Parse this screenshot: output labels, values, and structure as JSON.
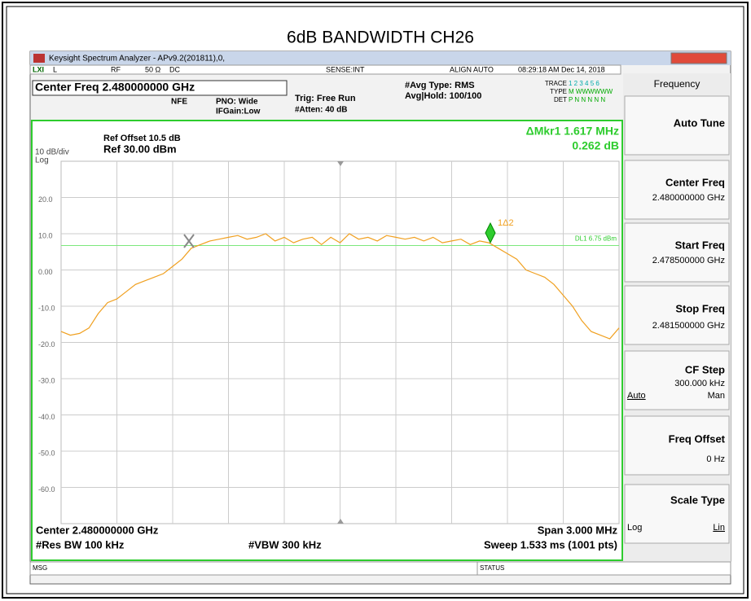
{
  "title": "6dB BANDWIDTH  CH26",
  "window": {
    "title": "Keysight Spectrum Analyzer - APv9.2(201811),0,"
  },
  "status_row": {
    "lxi": "LXI",
    "l": "L",
    "rf": "RF",
    "ohm": "50 Ω",
    "dc": "DC",
    "sense": "SENSE:INT",
    "align": "ALIGN AUTO",
    "time": "08:29:18 AM Dec 14, 2018"
  },
  "header": {
    "center_freq": "Center Freq 2.480000000 GHz",
    "nfe": "NFE",
    "pno": "PNO: Wide",
    "ifgain": "IFGain:Low",
    "trig": "Trig: Free Run",
    "atten": "#Atten: 40 dB",
    "avg_type": "#Avg Type: RMS",
    "avg_hold": "Avg|Hold: 100/100",
    "trace_label": "TRACE",
    "trace_digits": "1 2 3 4 5 6",
    "type_label": "TYPE",
    "type_value": "M WWWWWW",
    "det_label": "DET",
    "det_value": "P N N N N N"
  },
  "chart_data": {
    "type": "line",
    "ref_offset": "Ref Offset 10.5 dB",
    "ref_level": "Ref 30.00 dBm",
    "scale": "10 dB/div",
    "scale_type": "Log",
    "marker_readout": "ΔMkr1 1.617 MHz",
    "marker_value": "0.262 dB",
    "marker_label": "1Δ2",
    "display_line": {
      "value": 6.75,
      "label": "DL1 6.75 dBm"
    },
    "ylim": [
      -70,
      30
    ],
    "yticks": [
      {
        "value": 20,
        "label": "20.0"
      },
      {
        "value": 10,
        "label": "10.0"
      },
      {
        "value": 0,
        "label": "0.00"
      },
      {
        "value": -10,
        "label": "-10.0"
      },
      {
        "value": -20,
        "label": "-20.0"
      },
      {
        "value": -30,
        "label": "-30.0"
      },
      {
        "value": -40,
        "label": "-40.0"
      },
      {
        "value": -50,
        "label": "-50.0"
      },
      {
        "value": -60,
        "label": "-60.0"
      }
    ],
    "series": [
      {
        "name": "Trace 1",
        "color": "#f0a020",
        "values": [
          -17,
          -18,
          -17.5,
          -16,
          -12,
          -9,
          -8,
          -6,
          -4,
          -3,
          -2,
          -1,
          1,
          3,
          6,
          7,
          8,
          8.5,
          9,
          9.5,
          8.5,
          9,
          10,
          8,
          9,
          7.5,
          8.5,
          9,
          7,
          9,
          7.5,
          10,
          8.5,
          9,
          8,
          9.5,
          9,
          8.5,
          9,
          8,
          9,
          7.5,
          8,
          8.5,
          7,
          8,
          7.5,
          6,
          4.5,
          3,
          0,
          -1,
          -2,
          -4,
          -7,
          -10,
          -14,
          -17,
          -18,
          -19,
          -16
        ]
      }
    ],
    "footer": {
      "center": "Center 2.480000000 GHz",
      "span": "Span 3.000 MHz",
      "rbw": "#Res BW 100 kHz",
      "vbw": "#VBW 300 kHz",
      "sweep": "Sweep  1.533 ms (1001 pts)"
    }
  },
  "softkeys": {
    "menu": "Frequency",
    "auto_tune": "Auto Tune",
    "center_freq": {
      "label": "Center Freq",
      "value": "2.480000000 GHz"
    },
    "start_freq": {
      "label": "Start Freq",
      "value": "2.478500000 GHz"
    },
    "stop_freq": {
      "label": "Stop Freq",
      "value": "2.481500000 GHz"
    },
    "cf_step": {
      "label": "CF Step",
      "value": "300.000 kHz",
      "auto": "Auto",
      "man": "Man"
    },
    "freq_offset": {
      "label": "Freq Offset",
      "value": "0 Hz"
    },
    "scale_type": {
      "label": "Scale Type",
      "log": "Log",
      "lin": "Lin"
    }
  },
  "statusbar": {
    "msg": "MSG",
    "status": "STATUS"
  }
}
